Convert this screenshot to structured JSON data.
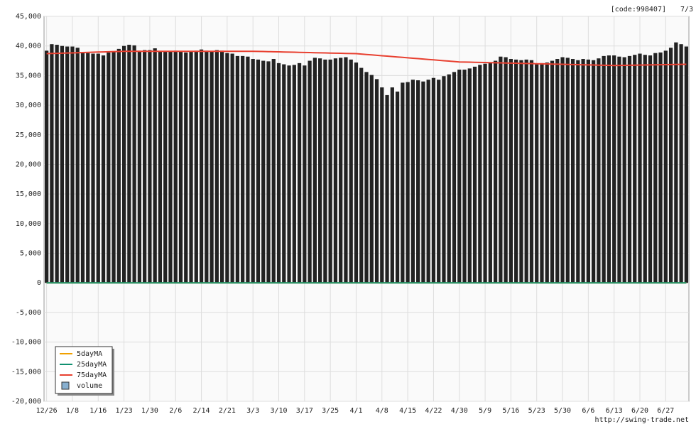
{
  "chart_data": {
    "type": "bar",
    "code_label": "[code:998407]",
    "date_label": "7/3",
    "footer": "http://swing-trade.net",
    "categories": [
      "12/26",
      null,
      null,
      null,
      null,
      "1/8",
      null,
      null,
      null,
      null,
      "1/16",
      null,
      null,
      null,
      null,
      "1/23",
      null,
      null,
      null,
      null,
      "1/30",
      null,
      null,
      null,
      null,
      "2/6",
      null,
      null,
      null,
      null,
      "2/14",
      null,
      null,
      null,
      null,
      "2/21",
      null,
      null,
      null,
      null,
      "3/3",
      null,
      null,
      null,
      null,
      "3/10",
      null,
      null,
      null,
      null,
      "3/17",
      null,
      null,
      null,
      null,
      "3/25",
      null,
      null,
      null,
      null,
      "4/1",
      null,
      null,
      null,
      null,
      "4/8",
      null,
      null,
      null,
      null,
      "4/15",
      null,
      null,
      null,
      null,
      "4/22",
      null,
      null,
      null,
      null,
      "4/30",
      null,
      null,
      null,
      null,
      "5/9",
      null,
      null,
      null,
      null,
      "5/16",
      null,
      null,
      null,
      null,
      "5/23",
      null,
      null,
      null,
      null,
      "5/30",
      null,
      null,
      null,
      null,
      "6/6",
      null,
      null,
      null,
      null,
      "6/13",
      null,
      null,
      null,
      null,
      "6/20",
      null,
      null,
      null,
      null,
      "6/27",
      null,
      null,
      null,
      null
    ],
    "values": [
      39200,
      40300,
      40200,
      40000,
      39900,
      39900,
      39700,
      38900,
      38800,
      38700,
      38700,
      38400,
      38900,
      39000,
      39500,
      40000,
      40200,
      40100,
      39200,
      39300,
      39300,
      39600,
      39100,
      39100,
      39100,
      39200,
      39100,
      38900,
      39000,
      39200,
      39400,
      39200,
      39100,
      39300,
      39200,
      38800,
      38700,
      38300,
      38300,
      38200,
      37800,
      37700,
      37500,
      37400,
      37800,
      37100,
      36900,
      36700,
      36800,
      37100,
      36700,
      37500,
      38000,
      37900,
      37700,
      37700,
      37900,
      38000,
      38100,
      37700,
      37200,
      36300,
      35600,
      35100,
      34400,
      33000,
      31700,
      33000,
      32300,
      33800,
      33900,
      34300,
      34200,
      34000,
      34300,
      34600,
      34300,
      34900,
      35200,
      35600,
      36000,
      36000,
      36200,
      36500,
      36800,
      37000,
      37200,
      37500,
      38200,
      38100,
      37800,
      37700,
      37600,
      37700,
      37600,
      36900,
      37100,
      37200,
      37500,
      37800,
      38100,
      38000,
      37800,
      37600,
      37800,
      37700,
      37600,
      37900,
      38300,
      38400,
      38400,
      38200,
      38100,
      38300,
      38500,
      38700,
      38500,
      38400,
      38800,
      38900,
      39200,
      39700,
      40600,
      40300,
      39900
    ],
    "color": "#222222",
    "series": [
      {
        "name": "5dayMA",
        "color": "#f0a000",
        "values": [
          0,
          0,
          0,
          0,
          0,
          0,
          0,
          0,
          0,
          0,
          0,
          0,
          0,
          0,
          0,
          0,
          0,
          0,
          0,
          0,
          0,
          0,
          0,
          0,
          0,
          0,
          0,
          0,
          0,
          0,
          0,
          0,
          0,
          0,
          0,
          0,
          0,
          0,
          0,
          0,
          0,
          0,
          0,
          0,
          0,
          0,
          0,
          0,
          0,
          0,
          0,
          0,
          0,
          0,
          0,
          0,
          0,
          0,
          0,
          0,
          0,
          0,
          0,
          0,
          0,
          0,
          0,
          0,
          0,
          0,
          0,
          0,
          0,
          0,
          0,
          0,
          0,
          0,
          0,
          0,
          0,
          0,
          0,
          0,
          0,
          0,
          0,
          0,
          0,
          0,
          0,
          0,
          0,
          0,
          0,
          0,
          0,
          0,
          0,
          0,
          0,
          0,
          0,
          0,
          0,
          0,
          0,
          0,
          0,
          0,
          0,
          0,
          0,
          0,
          0,
          0,
          0,
          0,
          0,
          0,
          0,
          0,
          0,
          0,
          0
        ]
      },
      {
        "name": "25dayMA",
        "color": "#109070",
        "values": [
          0,
          0,
          0,
          0,
          0,
          0,
          0,
          0,
          0,
          0,
          0,
          0,
          0,
          0,
          0,
          0,
          0,
          0,
          0,
          0,
          0,
          0,
          0,
          0,
          0,
          0,
          0,
          0,
          0,
          0,
          0,
          0,
          0,
          0,
          0,
          0,
          0,
          0,
          0,
          0,
          0,
          0,
          0,
          0,
          0,
          0,
          0,
          0,
          0,
          0,
          0,
          0,
          0,
          0,
          0,
          0,
          0,
          0,
          0,
          0,
          0,
          0,
          0,
          0,
          0,
          0,
          0,
          0,
          0,
          0,
          0,
          0,
          0,
          0,
          0,
          0,
          0,
          0,
          0,
          0,
          0,
          0,
          0,
          0,
          0,
          0,
          0,
          0,
          0,
          0,
          0,
          0,
          0,
          0,
          0,
          0,
          0,
          0,
          0,
          0,
          0,
          0,
          0,
          0,
          0,
          0,
          0,
          0,
          0,
          0,
          0,
          0,
          0,
          0,
          0,
          0,
          0,
          0,
          0,
          0,
          0,
          0,
          0,
          0,
          0
        ]
      },
      {
        "name": "75dayMA",
        "color": "#e84030",
        "values": [
          38700,
          38730,
          38750,
          38780,
          38810,
          38830,
          38860,
          38890,
          38910,
          38940,
          38970,
          38990,
          39020,
          39050,
          39070,
          39100,
          39100,
          39100,
          39100,
          39100,
          39100,
          39100,
          39100,
          39100,
          39100,
          39100,
          39100,
          39100,
          39100,
          39100,
          39100,
          39100,
          39100,
          39100,
          39100,
          39100,
          39100,
          39100,
          39100,
          39100,
          39100,
          39080,
          39060,
          39040,
          39020,
          39000,
          38980,
          38960,
          38940,
          38920,
          38900,
          38880,
          38860,
          38840,
          38820,
          38800,
          38780,
          38760,
          38740,
          38720,
          38700,
          38630,
          38560,
          38490,
          38420,
          38350,
          38280,
          38210,
          38140,
          38070,
          38000,
          37930,
          37860,
          37790,
          37720,
          37650,
          37580,
          37510,
          37440,
          37370,
          37300,
          37280,
          37260,
          37240,
          37220,
          37200,
          37180,
          37160,
          37140,
          37120,
          37100,
          37080,
          37060,
          37040,
          37020,
          37000,
          36980,
          36960,
          36940,
          36920,
          36900,
          36880,
          36860,
          36840,
          36820,
          36800,
          36780,
          36760,
          36740,
          36720,
          36700,
          36710,
          36730,
          36740,
          36760,
          36770,
          36790,
          36800,
          36820,
          36830,
          36840,
          36860,
          36870,
          36890,
          36900
        ]
      }
    ],
    "volume_legend": {
      "name": "volume",
      "color": "#88b0d0"
    },
    "ylim": [
      -20000,
      45000
    ],
    "yticks": [
      {
        "value": -20000,
        "label": "-20,000"
      },
      {
        "value": -15000,
        "label": "-15,000"
      },
      {
        "value": -10000,
        "label": "-10,000"
      },
      {
        "value": -5000,
        "label": "-5,000"
      },
      0,
      {
        "value": 5000,
        "label": "5,000"
      },
      {
        "value": 10000,
        "label": "10,000"
      },
      {
        "value": 15000,
        "label": "15,000"
      },
      {
        "value": 20000,
        "label": "20,000"
      },
      {
        "value": 25000,
        "label": "25,000"
      },
      {
        "value": 30000,
        "label": "30,000"
      },
      {
        "value": 35000,
        "label": "35,000"
      },
      {
        "value": 40000,
        "label": "40,000"
      },
      {
        "value": 45000,
        "label": "45,000"
      }
    ],
    "grid": true
  }
}
